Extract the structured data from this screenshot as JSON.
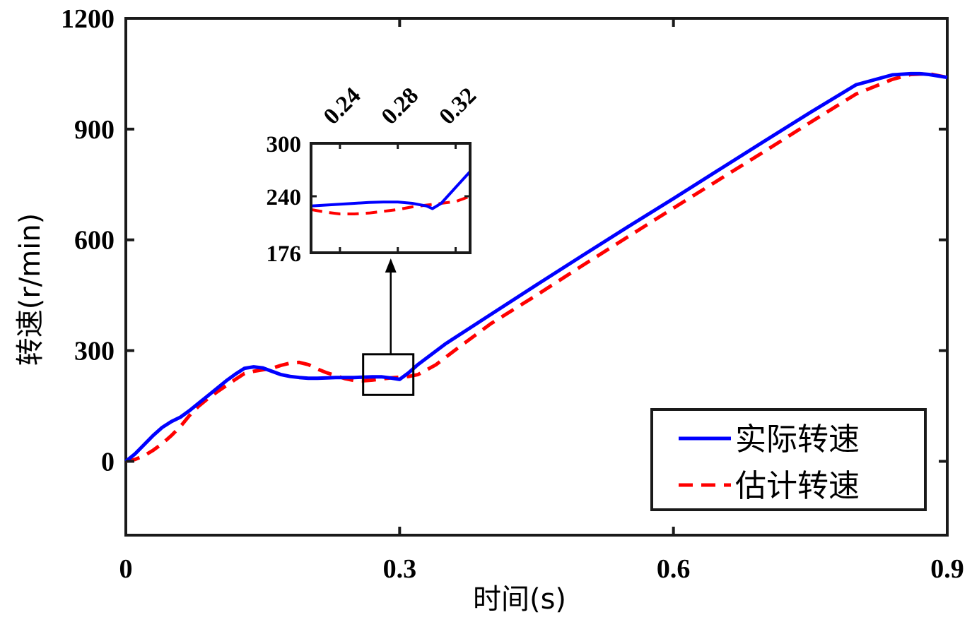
{
  "chart_data": {
    "type": "line",
    "xlabel": "时间(s)",
    "ylabel": "转速(r/min)",
    "xlim": [
      0,
      0.9
    ],
    "ylim": [
      -200,
      1200
    ],
    "xticks": [
      0,
      0.3,
      0.6,
      0.9
    ],
    "xtick_labels": [
      "0",
      "0.3",
      "0.6",
      "0.9"
    ],
    "yticks": [
      0,
      300,
      600,
      900,
      1200
    ],
    "ytick_labels": [
      "0",
      "300",
      "600",
      "900",
      "1200"
    ],
    "grid": false,
    "legend_position": "bottom-right",
    "series": [
      {
        "name": "实际转速",
        "color": "#0000ff",
        "style": "solid",
        "x": [
          0,
          0.01,
          0.02,
          0.03,
          0.04,
          0.05,
          0.06,
          0.07,
          0.08,
          0.09,
          0.1,
          0.11,
          0.12,
          0.13,
          0.14,
          0.15,
          0.16,
          0.17,
          0.18,
          0.19,
          0.2,
          0.21,
          0.22,
          0.23,
          0.24,
          0.25,
          0.26,
          0.27,
          0.28,
          0.29,
          0.3,
          0.31,
          0.32,
          0.35,
          0.4,
          0.45,
          0.5,
          0.55,
          0.6,
          0.65,
          0.7,
          0.75,
          0.8,
          0.84,
          0.86,
          0.87,
          0.88,
          0.9
        ],
        "y": [
          0,
          20,
          45,
          70,
          92,
          108,
          120,
          138,
          158,
          178,
          198,
          218,
          236,
          252,
          256,
          253,
          244,
          235,
          230,
          227,
          225,
          225,
          226,
          227,
          227,
          227,
          228,
          229,
          229,
          226,
          222,
          240,
          262,
          318,
          398,
          478,
          557,
          635,
          712,
          790,
          868,
          945,
          1020,
          1047,
          1050,
          1050,
          1048,
          1040
        ]
      },
      {
        "name": "估计转速",
        "color": "#ff0000",
        "style": "dashed",
        "x": [
          0,
          0.01,
          0.02,
          0.03,
          0.04,
          0.05,
          0.06,
          0.07,
          0.08,
          0.09,
          0.1,
          0.11,
          0.12,
          0.13,
          0.14,
          0.15,
          0.16,
          0.17,
          0.18,
          0.19,
          0.2,
          0.21,
          0.22,
          0.23,
          0.24,
          0.25,
          0.26,
          0.27,
          0.28,
          0.29,
          0.3,
          0.31,
          0.32,
          0.34,
          0.36,
          0.4,
          0.45,
          0.5,
          0.55,
          0.6,
          0.65,
          0.7,
          0.75,
          0.8,
          0.84,
          0.86,
          0.88,
          0.9
        ],
        "y": [
          0,
          5,
          15,
          30,
          48,
          70,
          95,
          125,
          150,
          170,
          188,
          205,
          222,
          238,
          244,
          248,
          252,
          260,
          266,
          268,
          262,
          250,
          240,
          232,
          224,
          219,
          218,
          220,
          223,
          226,
          228,
          230,
          235,
          262,
          300,
          373,
          450,
          530,
          608,
          686,
          763,
          840,
          918,
          995,
          1035,
          1048,
          1050,
          1040
        ]
      }
    ],
    "inset": {
      "xlim": [
        0.22,
        0.33
      ],
      "ylim": [
        176,
        300
      ],
      "xticks": [
        0.24,
        0.28,
        0.32
      ],
      "xtick_labels": [
        "0.24",
        "0.28",
        "0.32"
      ],
      "yticks": [
        176,
        240,
        300
      ],
      "ytick_labels": [
        "176",
        "240",
        "300"
      ],
      "series": [
        {
          "name": "实际转速",
          "x": [
            0.22,
            0.23,
            0.24,
            0.25,
            0.26,
            0.27,
            0.28,
            0.29,
            0.3,
            0.304,
            0.31,
            0.32,
            0.33
          ],
          "y": [
            229,
            230,
            231,
            232,
            233,
            233.5,
            233.5,
            232,
            229,
            226,
            232,
            250,
            268
          ]
        },
        {
          "name": "估计转速",
          "x": [
            0.22,
            0.23,
            0.24,
            0.25,
            0.26,
            0.27,
            0.28,
            0.29,
            0.3,
            0.31,
            0.32,
            0.33
          ],
          "y": [
            225,
            222,
            220,
            220,
            221,
            223,
            225,
            228,
            230,
            232,
            234,
            240
          ]
        }
      ],
      "zoom_region": {
        "x": [
          0.26,
          0.315
        ],
        "y": [
          180,
          290
        ]
      }
    }
  }
}
